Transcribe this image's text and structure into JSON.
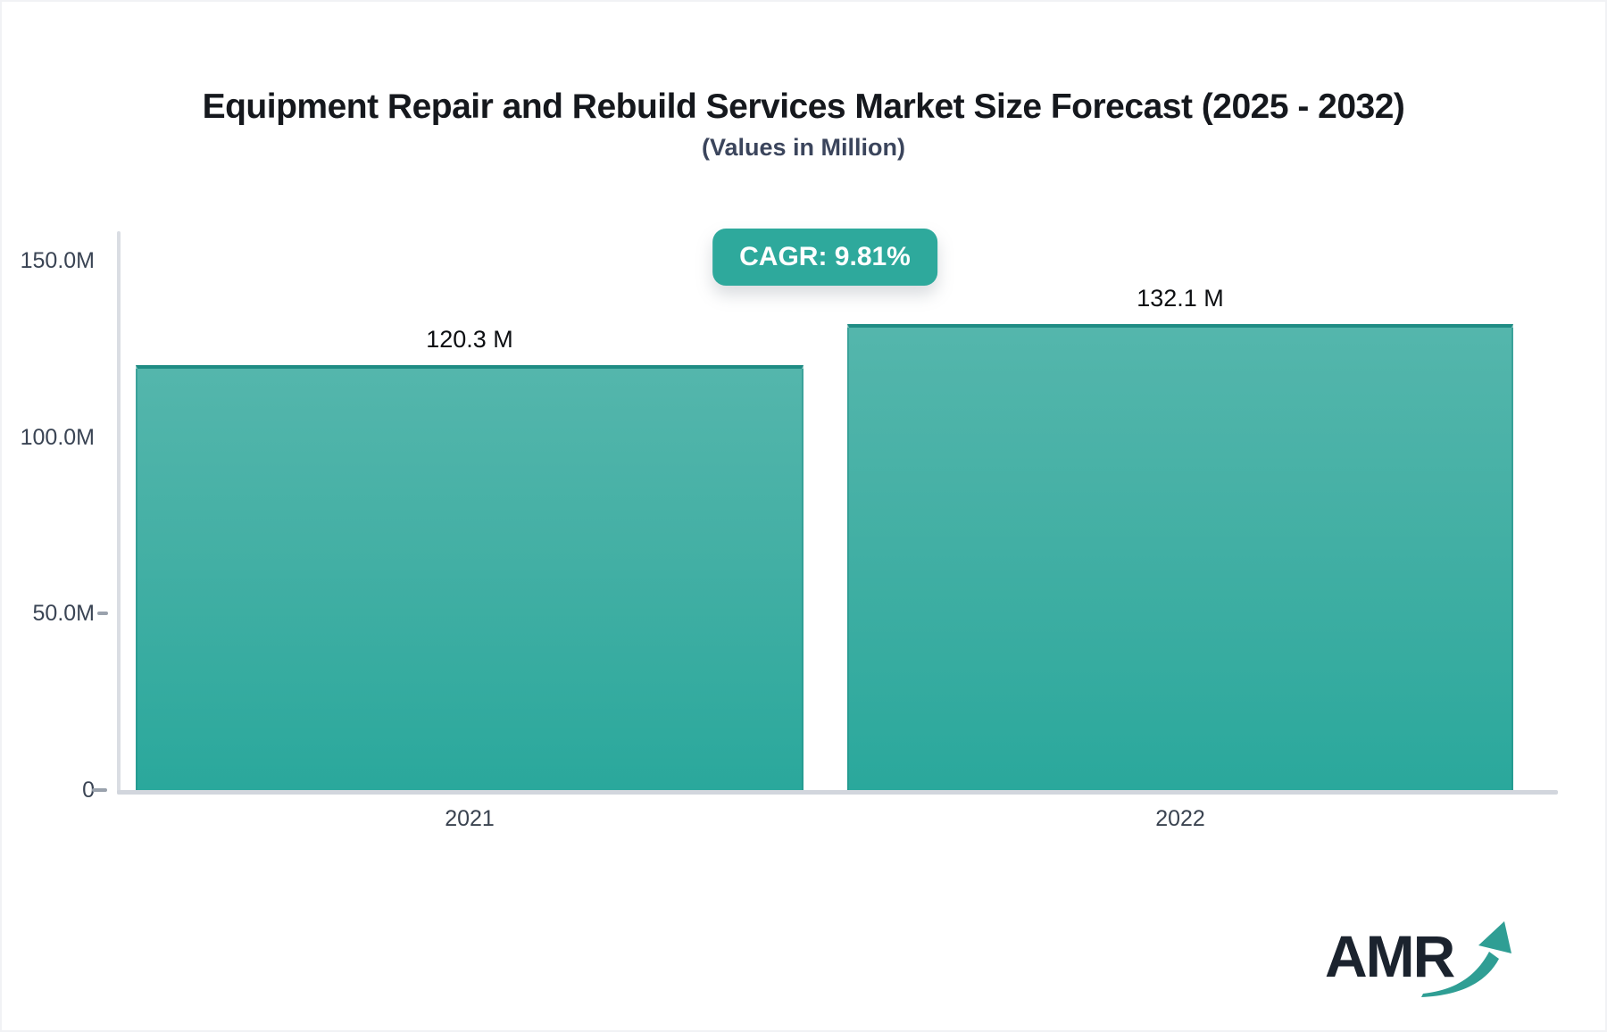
{
  "header": {
    "title": "Equipment Repair and Rebuild Services Market Size Forecast (2025 - 2032)",
    "subtitle": "(Values in Million)"
  },
  "badge": {
    "label": "CAGR: 9.81%",
    "background": "#2ea99c",
    "text_color": "#ffffff"
  },
  "chart_data": {
    "type": "bar",
    "title": "Equipment Repair and Rebuild Services Market Size Forecast (2025 - 2032)",
    "subtitle": "(Values in Million)",
    "categories": [
      "2021",
      "2022"
    ],
    "values": [
      120.3,
      132.1
    ],
    "value_labels": [
      "120.3 M",
      "132.1 M"
    ],
    "unit": "Million",
    "cagr": "9.81%",
    "xlabel": "",
    "ylabel": "",
    "ylim": [
      0,
      150
    ],
    "y_ticks": [
      "150.0M",
      "100.0M",
      "50.0M",
      "0"
    ],
    "y_tick_values": [
      150,
      100,
      50,
      0
    ],
    "grid": false,
    "legend": false,
    "bar_color_top": "#54b6ac",
    "bar_color_bottom": "#2aa89c",
    "bar_border_color": "#1f8c84"
  },
  "logo": {
    "text": "AMR",
    "icon": "growth-arrow-icon",
    "text_color": "#1b232e",
    "arrow_color": "#2f9e94"
  }
}
